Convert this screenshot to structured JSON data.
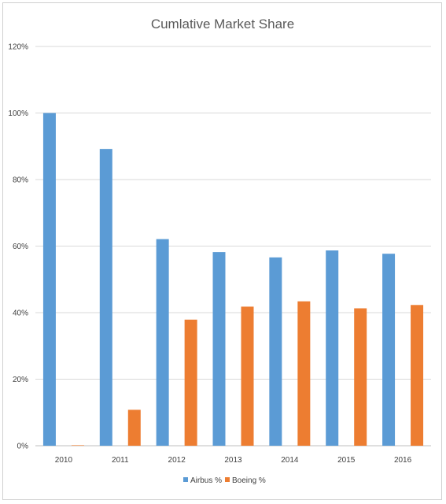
{
  "chart_data": {
    "type": "bar",
    "title": "Cumlative Market Share",
    "xlabel": "",
    "ylabel": "",
    "categories": [
      "2010",
      "2011",
      "2012",
      "2013",
      "2014",
      "2015",
      "2016"
    ],
    "series": [
      {
        "name": "Airbus %",
        "color": "#5b9bd5",
        "values": [
          100,
          89.2,
          62.1,
          58.2,
          56.6,
          58.7,
          57.7
        ]
      },
      {
        "name": "Boeing %",
        "color": "#ed7d31",
        "values": [
          0,
          10.8,
          37.9,
          41.8,
          43.4,
          41.3,
          42.3
        ]
      }
    ],
    "ylim": [
      0,
      120
    ],
    "yticks": [
      0,
      20,
      40,
      60,
      80,
      100,
      120
    ],
    "ytick_labels": [
      "0%",
      "20%",
      "40%",
      "60%",
      "80%",
      "100%",
      "120%"
    ],
    "grid": true,
    "legend_position": "bottom"
  }
}
